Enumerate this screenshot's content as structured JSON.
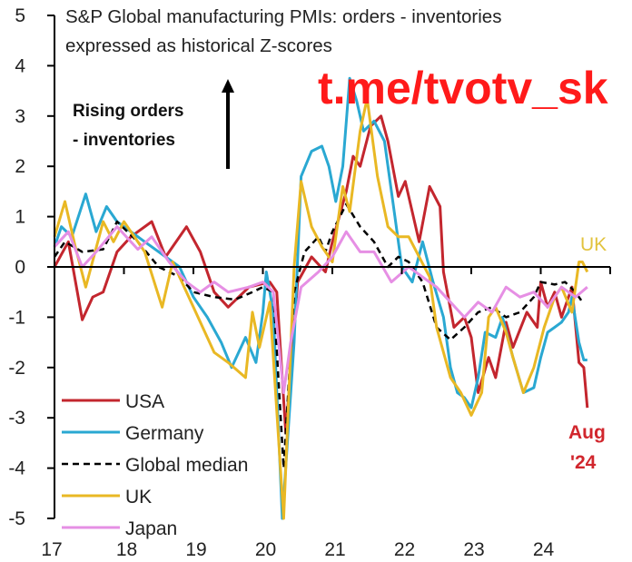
{
  "chart_data": {
    "type": "line",
    "title": "S&P Global manufacturing PMIs: orders - inventories",
    "subtitle": "expressed as historical Z-scores",
    "xlabel": "",
    "ylabel": "",
    "xlim": [
      2017,
      2025
    ],
    "ylim": [
      -5,
      5
    ],
    "x_ticks": [
      2017,
      2018,
      2019,
      2020,
      2021,
      2022,
      2023,
      2024,
      2025
    ],
    "x_tick_labels": [
      "17",
      "18",
      "19",
      "20",
      "21",
      "22",
      "23",
      "24",
      ""
    ],
    "y_ticks": [
      -5,
      -4,
      -3,
      -2,
      -1,
      0,
      1,
      2,
      3,
      4,
      5
    ],
    "y_tick_labels": [
      "-5",
      "-4",
      "-3",
      "-2",
      "-1",
      "0",
      "1",
      "2",
      "3",
      "4",
      "5"
    ],
    "grid": false,
    "legend_placement": "bottom-left",
    "annotations": {
      "direction_note_line1": "Rising orders",
      "direction_note_line2": "- inventories",
      "uk_label": "UK",
      "end_label_line1": "Aug",
      "end_label_line2": "'24"
    },
    "series": [
      {
        "name": "USA",
        "color": "#c3262e",
        "dash": false,
        "x": [
          2017,
          2017.2,
          2017.4,
          2017.55,
          2017.7,
          2017.9,
          2018.1,
          2018.4,
          2018.6,
          2018.9,
          2019.1,
          2019.3,
          2019.5,
          2019.8,
          2020.1,
          2020.2,
          2020.33,
          2020.5,
          2020.7,
          2020.9,
          2021.0,
          2021.1,
          2021.2,
          2021.3,
          2021.4,
          2021.55,
          2021.7,
          2021.8,
          2021.95,
          2022.05,
          2022.25,
          2022.4,
          2022.55,
          2022.6,
          2022.75,
          2022.9,
          2023.0,
          2023.1,
          2023.25,
          2023.35,
          2023.5,
          2023.6,
          2023.8,
          2023.95,
          2024.0,
          2024.1,
          2024.2,
          2024.3,
          2024.45,
          2024.55,
          2024.62,
          2024.67
        ],
        "y": [
          0,
          0.5,
          -1.05,
          -0.6,
          -0.5,
          0.3,
          0.6,
          0.9,
          0.2,
          0.8,
          0.3,
          -0.5,
          -0.8,
          -0.4,
          -0.3,
          -0.5,
          -3.3,
          -0.3,
          0.2,
          -0.1,
          0.5,
          1.0,
          1.5,
          2.2,
          2.0,
          2.8,
          3.0,
          2.5,
          1.4,
          1.7,
          0.5,
          1.6,
          1.2,
          -0.1,
          -1.2,
          -1.0,
          -1.4,
          -2.5,
          -1.8,
          -2.2,
          -1.1,
          -1.6,
          -0.9,
          -1.2,
          -0.3,
          -0.8,
          -0.5,
          -1.0,
          -0.4,
          -1.9,
          -2.0,
          -2.8
        ]
      },
      {
        "name": "Germany",
        "color": "#2aa8d2",
        "dash": false,
        "x": [
          2017,
          2017.1,
          2017.25,
          2017.45,
          2017.6,
          2017.75,
          2017.9,
          2018.3,
          2018.6,
          2018.8,
          2019.0,
          2019.2,
          2019.4,
          2019.55,
          2019.75,
          2019.9,
          2020.0,
          2020.05,
          2020.15,
          2020.28,
          2020.45,
          2020.55,
          2020.7,
          2020.85,
          2020.95,
          2021.05,
          2021.15,
          2021.25,
          2021.35,
          2021.45,
          2021.6,
          2021.75,
          2021.9,
          2022.0,
          2022.15,
          2022.3,
          2022.45,
          2022.6,
          2022.7,
          2022.8,
          2022.9,
          2023.0,
          2023.1,
          2023.2,
          2023.35,
          2023.45,
          2023.6,
          2023.75,
          2023.9,
          2024.0,
          2024.1,
          2024.2,
          2024.3,
          2024.4,
          2024.45,
          2024.55,
          2024.62,
          2024.67
        ],
        "y": [
          0.4,
          0.8,
          0.6,
          1.45,
          0.7,
          1.2,
          0.9,
          0.5,
          0.2,
          0.0,
          -0.6,
          -1.0,
          -1.5,
          -2.0,
          -1.4,
          -1.9,
          -0.9,
          -0.1,
          -0.9,
          -5.0,
          -1.5,
          1.8,
          2.3,
          2.4,
          2.0,
          1.3,
          2.0,
          3.75,
          3.3,
          2.7,
          2.9,
          2.5,
          1.0,
          0.0,
          -0.3,
          0.5,
          -0.3,
          -1.0,
          -2.0,
          -2.5,
          -2.6,
          -2.8,
          -2.2,
          -1.3,
          -1.4,
          -1.0,
          -1.8,
          -2.5,
          -2.4,
          -1.8,
          -1.3,
          -1.2,
          -1.1,
          -0.9,
          -0.6,
          -1.5,
          -1.85,
          -1.85
        ]
      },
      {
        "name": "Global median",
        "color": "#000000",
        "dash": true,
        "x": [
          2017,
          2017.15,
          2017.4,
          2017.7,
          2017.9,
          2018.2,
          2018.5,
          2018.8,
          2019.0,
          2019.3,
          2019.6,
          2019.85,
          2020.0,
          2020.15,
          2020.3,
          2020.45,
          2020.6,
          2020.8,
          2020.9,
          2021.0,
          2021.2,
          2021.4,
          2021.6,
          2021.8,
          2021.95,
          2022.1,
          2022.3,
          2022.5,
          2022.7,
          2022.9,
          2023.1,
          2023.3,
          2023.5,
          2023.7,
          2023.9,
          2024.0,
          2024.2,
          2024.35,
          2024.5,
          2024.6
        ],
        "y": [
          0.2,
          0.5,
          0.3,
          0.35,
          0.9,
          0.5,
          0.0,
          -0.2,
          -0.5,
          -0.6,
          -0.65,
          -0.5,
          -0.4,
          -0.5,
          -4.0,
          -0.5,
          0.3,
          0.6,
          0.3,
          0.7,
          1.25,
          0.8,
          0.5,
          0.0,
          0.2,
          0.1,
          -0.3,
          -1.2,
          -1.45,
          -1.2,
          -0.9,
          -0.8,
          -1.0,
          -0.9,
          -0.6,
          -0.3,
          -0.35,
          -0.3,
          -0.5,
          -0.7
        ]
      },
      {
        "name": "UK",
        "color": "#e9b824",
        "dash": false,
        "x": [
          2017,
          2017.15,
          2017.3,
          2017.45,
          2017.7,
          2017.85,
          2018.0,
          2018.3,
          2018.55,
          2018.7,
          2018.9,
          2019.0,
          2019.3,
          2019.5,
          2019.75,
          2019.85,
          2019.95,
          2020.1,
          2020.3,
          2020.45,
          2020.55,
          2020.7,
          2020.85,
          2021.0,
          2021.15,
          2021.25,
          2021.4,
          2021.5,
          2021.65,
          2021.8,
          2021.95,
          2022.1,
          2022.25,
          2022.4,
          2022.5,
          2022.7,
          2022.85,
          2023.0,
          2023.15,
          2023.25,
          2023.35,
          2023.5,
          2023.6,
          2023.75,
          2023.9,
          2024.05,
          2024.2,
          2024.3,
          2024.45,
          2024.55,
          2024.6,
          2024.67
        ],
        "y": [
          0.6,
          1.3,
          0.4,
          -0.4,
          0.9,
          0.5,
          0.9,
          0.3,
          -0.8,
          0.1,
          -0.5,
          -0.8,
          -1.7,
          -1.9,
          -2.2,
          -0.9,
          -1.6,
          -0.7,
          -5.0,
          0.0,
          1.7,
          0.8,
          0.4,
          0.1,
          1.6,
          1.1,
          2.7,
          3.35,
          1.8,
          0.8,
          0.6,
          0.6,
          0.2,
          -0.2,
          -1.2,
          -2.2,
          -2.5,
          -2.95,
          -2.5,
          -1.0,
          -0.8,
          -1.3,
          -1.8,
          -2.5,
          -2.0,
          -1.2,
          -0.6,
          -0.4,
          -0.9,
          0.1,
          0.1,
          -0.1
        ]
      },
      {
        "name": "Japan",
        "color": "#e68fe4",
        "dash": false,
        "x": [
          2017,
          2017.2,
          2017.4,
          2017.6,
          2017.9,
          2018.2,
          2018.4,
          2018.65,
          2018.9,
          2019.1,
          2019.3,
          2019.5,
          2019.8,
          2020.0,
          2020.15,
          2020.3,
          2020.4,
          2020.55,
          2020.8,
          2021.0,
          2021.2,
          2021.4,
          2021.6,
          2021.85,
          2022.1,
          2022.3,
          2022.5,
          2022.7,
          2022.9,
          2023.1,
          2023.3,
          2023.5,
          2023.7,
          2023.9,
          2024.1,
          2024.3,
          2024.5,
          2024.67
        ],
        "y": [
          0.4,
          0.7,
          0.0,
          0.3,
          0.8,
          0.35,
          0.6,
          0.1,
          -0.3,
          -0.5,
          -0.3,
          -0.5,
          -0.4,
          -0.3,
          -0.5,
          -2.5,
          -1.5,
          -0.4,
          -0.1,
          0.2,
          0.7,
          0.3,
          0.3,
          -0.3,
          0.0,
          -0.2,
          -0.4,
          -0.7,
          -1.0,
          -0.7,
          -0.9,
          -0.4,
          -0.6,
          -0.5,
          -0.8,
          -0.4,
          -0.6,
          -0.4
        ]
      }
    ]
  },
  "watermark": "t.me/tvotv_sk"
}
